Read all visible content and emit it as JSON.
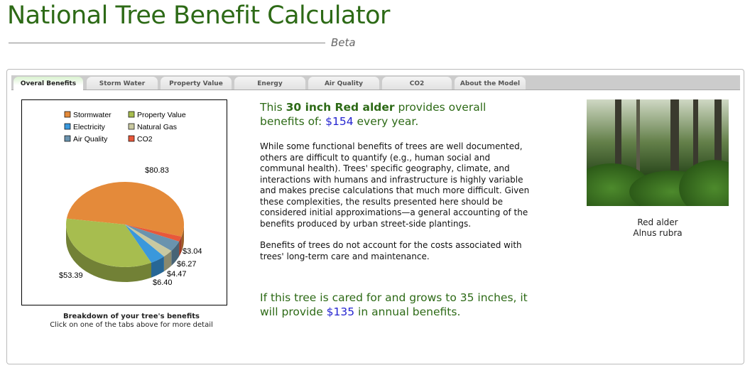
{
  "header": {
    "title": "National Tree Benefit Calculator",
    "subtitle": "Beta"
  },
  "tabs": [
    {
      "label": "Overal Benefits",
      "active": true
    },
    {
      "label": "Storm Water"
    },
    {
      "label": "Property Value"
    },
    {
      "label": "Energy"
    },
    {
      "label": "Air Quality"
    },
    {
      "label": "CO2"
    },
    {
      "label": "About the Model"
    }
  ],
  "summary": {
    "pre": "This ",
    "tree": "30 inch Red alder",
    "mid": " provides overall benefits of: ",
    "amount": "$154",
    "post": " every year."
  },
  "body": [
    "While some functional benefits of trees are well documented, others are difficult to quantify (e.g., human social and communal health). Trees' specific geography, climate, and interactions with humans and infrastructure is highly variable and makes precise calculations that much more difficult. Given these complexities, the results presented here should be considered initial approximations—a general accounting of the benefits produced by urban street-side plantings.",
    "Benefits of trees do not account for the costs associated with trees' long-term care and maintenance."
  ],
  "future": {
    "pre": "If this tree is cared for and grows to 35 inches, it will provide ",
    "amount": "$135",
    "post": " in annual benefits."
  },
  "caption": {
    "title": "Breakdown of your tree's benefits",
    "hint": "Click on one of the tabs above for more detail"
  },
  "species": {
    "common": "Red alder",
    "scientific": "Alnus rubra"
  },
  "chart_data": {
    "type": "pie",
    "series": [
      {
        "name": "Stormwater",
        "value": 80.83,
        "label": "$80.83",
        "color": "#e48a3a"
      },
      {
        "name": "CO2",
        "value": 3.04,
        "label": "$3.04",
        "color": "#e8583a"
      },
      {
        "name": "Air Quality",
        "value": 6.27,
        "label": "$6.27",
        "color": "#6a93ae"
      },
      {
        "name": "Natural Gas",
        "value": 4.47,
        "label": "$4.47",
        "color": "#c9c9a1"
      },
      {
        "name": "Electricity",
        "value": 6.4,
        "label": "$6.40",
        "color": "#3a98dc"
      },
      {
        "name": "Property Value",
        "value": 53.39,
        "label": "$53.39",
        "color": "#a7bd4f"
      }
    ],
    "legend": [
      "Stormwater",
      "Property Value",
      "Electricity",
      "Natural Gas",
      "Air Quality",
      "CO2"
    ],
    "legend_position": "top"
  }
}
